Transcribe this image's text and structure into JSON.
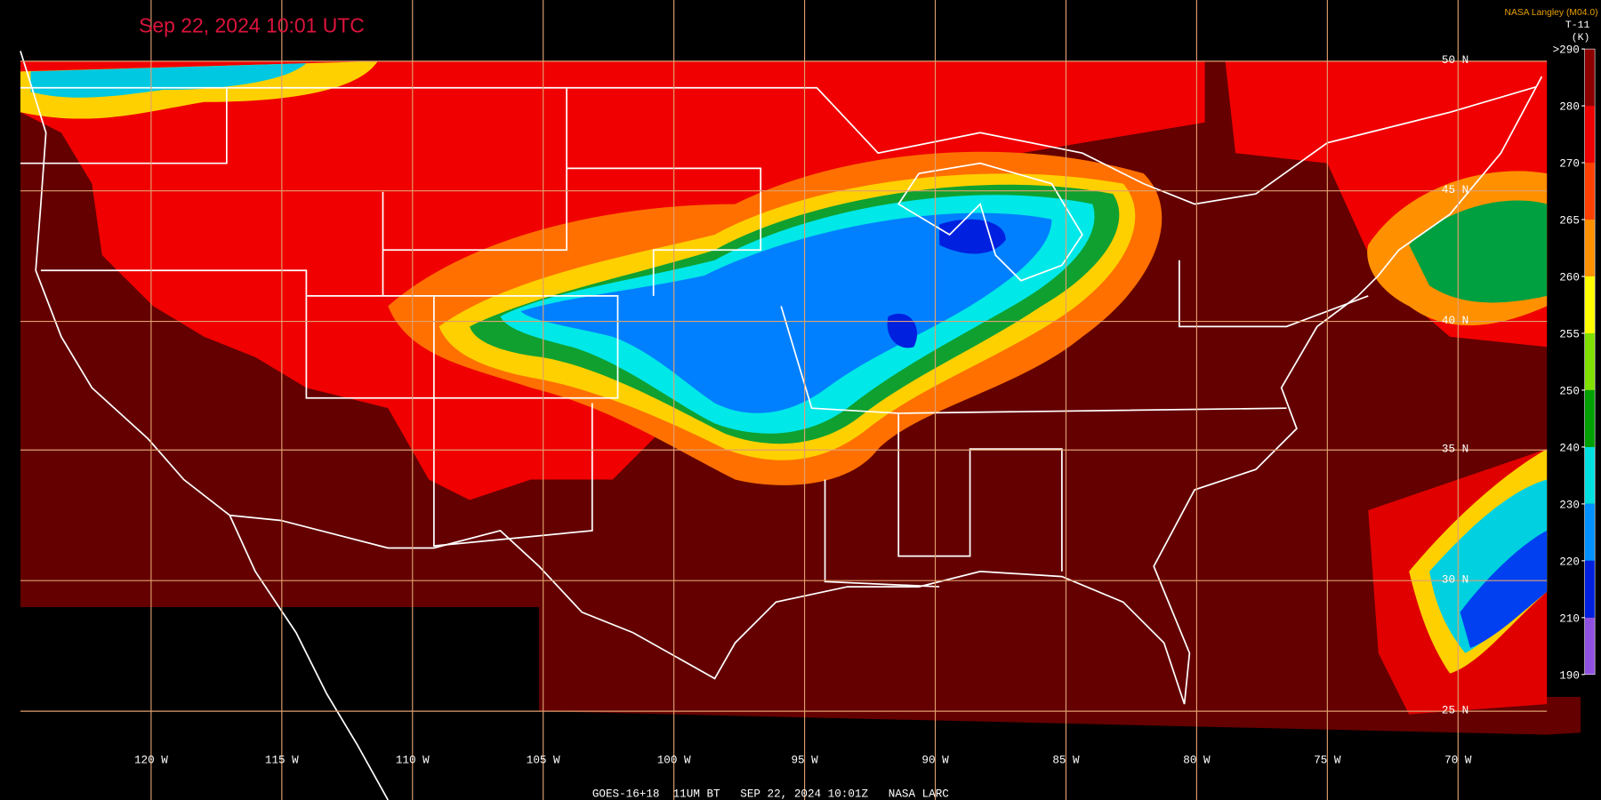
{
  "header": {
    "title": "Sep 22, 2024 10:01 UTC",
    "credit": "NASA Langley (M04.0)",
    "product": "T-11",
    "unit": "(K)"
  },
  "colorbar": {
    "ticks": [
      {
        "value": 290,
        "label": ">290"
      },
      280,
      270,
      265,
      260,
      255,
      250,
      240,
      230,
      220,
      210,
      190
    ],
    "colors": [
      "#8c0000",
      "#ee0000",
      "#ff4000",
      "#ff9000",
      "#ffff00",
      "#80e000",
      "#00a000",
      "#00e0e0",
      "#0090ff",
      "#0020e0",
      "#9050e0"
    ]
  },
  "latitude_labels": [
    "50 N",
    "45 N",
    "40 N",
    "35 N",
    "30 N",
    "25 N"
  ],
  "longitude_labels": [
    "120 W",
    "115 W",
    "110 W",
    "105 W",
    "100 W",
    "95 W",
    "90 W",
    "85 W",
    "80 W",
    "75 W",
    "70 W"
  ],
  "footer": "GOES-16+18  11UM BT   SEP 22, 2024 10:01Z   NASA LARC"
}
